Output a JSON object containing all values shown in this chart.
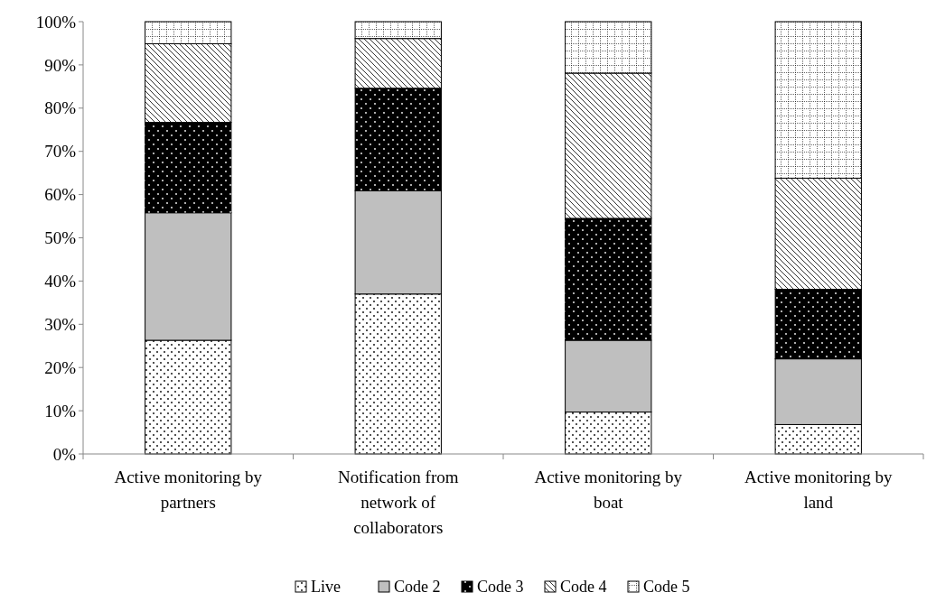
{
  "chart_data": {
    "type": "bar",
    "stacked": true,
    "categories": [
      "Active monitoring by partners",
      "Notification from network of collaborators",
      "Active monitoring by boat",
      "Active monitoring by land"
    ],
    "series": [
      {
        "name": "Live",
        "color": "#ffffff",
        "values": [
          26.3,
          37.0,
          9.7,
          6.8
        ]
      },
      {
        "name": "Code 2",
        "color": "#bfbfbf",
        "values": [
          29.5,
          23.9,
          16.6,
          15.2
        ]
      },
      {
        "name": "Code 3",
        "color": "#000000",
        "values": [
          20.9,
          23.7,
          28.2,
          16.1
        ]
      },
      {
        "name": "Code 4",
        "color": "#ffffff",
        "values": [
          18.2,
          11.5,
          33.6,
          25.7
        ]
      },
      {
        "name": "Code 5",
        "color": "#ffffff",
        "values": [
          5.1,
          3.9,
          11.9,
          36.2
        ]
      }
    ],
    "ylim": [
      0,
      100
    ],
    "yticks": [
      {
        "value": 0,
        "label": "0%"
      },
      {
        "value": 10,
        "label": "10%"
      },
      {
        "value": 20,
        "label": "20%"
      },
      {
        "value": 30,
        "label": "30%"
      },
      {
        "value": 40,
        "label": "40%"
      },
      {
        "value": 50,
        "label": "50%"
      },
      {
        "value": 60,
        "label": "60%"
      },
      {
        "value": 70,
        "label": "70%"
      },
      {
        "value": 80,
        "label": "80%"
      },
      {
        "value": 90,
        "label": "90%"
      },
      {
        "value": 100,
        "label": "100%"
      }
    ],
    "grid": false,
    "legend": "bottom"
  }
}
